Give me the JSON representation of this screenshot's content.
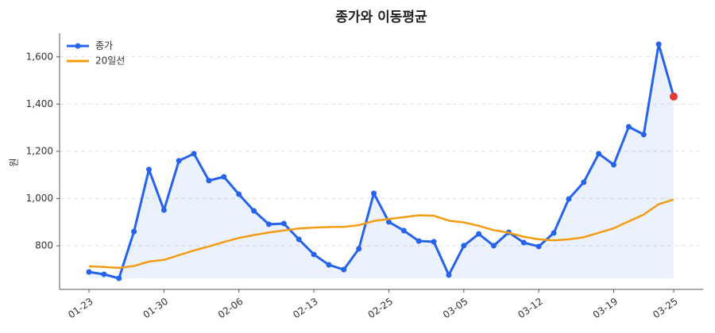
{
  "chart_data": {
    "type": "line",
    "title": "종가와 이동평균",
    "y_label": "원",
    "categories": [
      "01-23",
      null,
      null,
      null,
      null,
      "01-30",
      null,
      null,
      null,
      null,
      "02-06",
      null,
      null,
      null,
      null,
      "02-13",
      null,
      null,
      null,
      null,
      "02-25",
      null,
      null,
      null,
      null,
      "03-05",
      null,
      null,
      null,
      null,
      "03-12",
      null,
      null,
      null,
      null,
      "03-19",
      null,
      null,
      null,
      "03-25"
    ],
    "series": [
      {
        "name": "종가",
        "color": "#2563eb",
        "markers": true,
        "fill": true,
        "last_point_color": "#e53935",
        "values": [
          689,
          679,
          662,
          860,
          1123,
          951,
          1160,
          1190,
          1076,
          1092,
          1018,
          948,
          891,
          894,
          827,
          763,
          719,
          699,
          787,
          1022,
          901,
          864,
          820,
          817,
          676,
          800,
          850,
          800,
          857,
          813,
          797,
          854,
          998,
          1069,
          1190,
          1143,
          1304,
          1271,
          1654,
          1432
        ]
      },
      {
        "name": "20일선",
        "color": "#f39c12",
        "markers": false,
        "fill": false,
        "values": [
          713,
          710,
          706,
          714,
          733,
          740,
          760,
          780,
          797,
          816,
          833,
          845,
          856,
          865,
          873,
          877,
          879,
          880,
          887,
          905,
          913,
          921,
          929,
          927,
          906,
          899,
          884,
          866,
          855,
          838,
          827,
          823,
          827,
          836,
          855,
          874,
          903,
          932,
          976,
          996
        ]
      }
    ],
    "ylim": [
      615,
      1700
    ],
    "yticks": [
      800,
      {
        "value": 1000,
        "label": "1,000"
      },
      {
        "value": 1200,
        "label": "1,200"
      },
      {
        "value": 1400,
        "label": "1,400"
      },
      {
        "value": 1600,
        "label": "1,600"
      }
    ],
    "grid": true,
    "legend": "upper-left"
  }
}
